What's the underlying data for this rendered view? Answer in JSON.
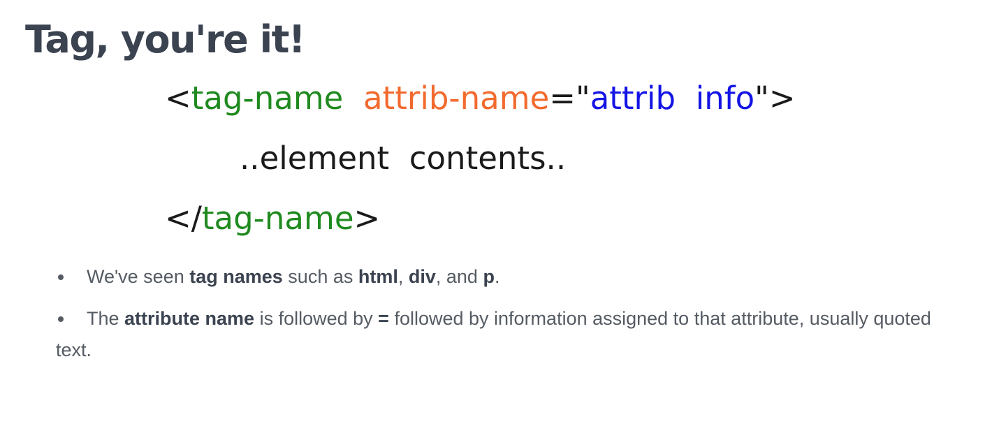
{
  "title": "Tag, you're it!",
  "figure": {
    "open_lt": "<",
    "tag_name": "tag-name",
    "space": " ",
    "attrib_name": "attrib-name",
    "equals_quote": "=\"",
    "attrib_info": "attrib  info",
    "quote_gt": "\">",
    "contents": "..element  contents..",
    "close_lt_slash": "</",
    "close_tag_name": "tag-name",
    "close_gt": ">"
  },
  "bullets": {
    "b1": {
      "t1": "We've seen ",
      "b_tag_names": "tag names",
      "t2": " such as ",
      "b_html": "html",
      "t3": ", ",
      "b_div": "div",
      "t4": ", and ",
      "b_p": "p",
      "t5": "."
    },
    "b2": {
      "t1": "The ",
      "b_attr_name": "attribute name",
      "t2": " is followed by ",
      "b_eq": "=",
      "t3": " followed by information assigned to that attribute, usually quoted text."
    }
  },
  "colors": {
    "tag": "#1f8a1f",
    "attribute": "#f26a2e",
    "value": "#1414e6",
    "title": "#3b4350",
    "body_text": "#555b63"
  }
}
